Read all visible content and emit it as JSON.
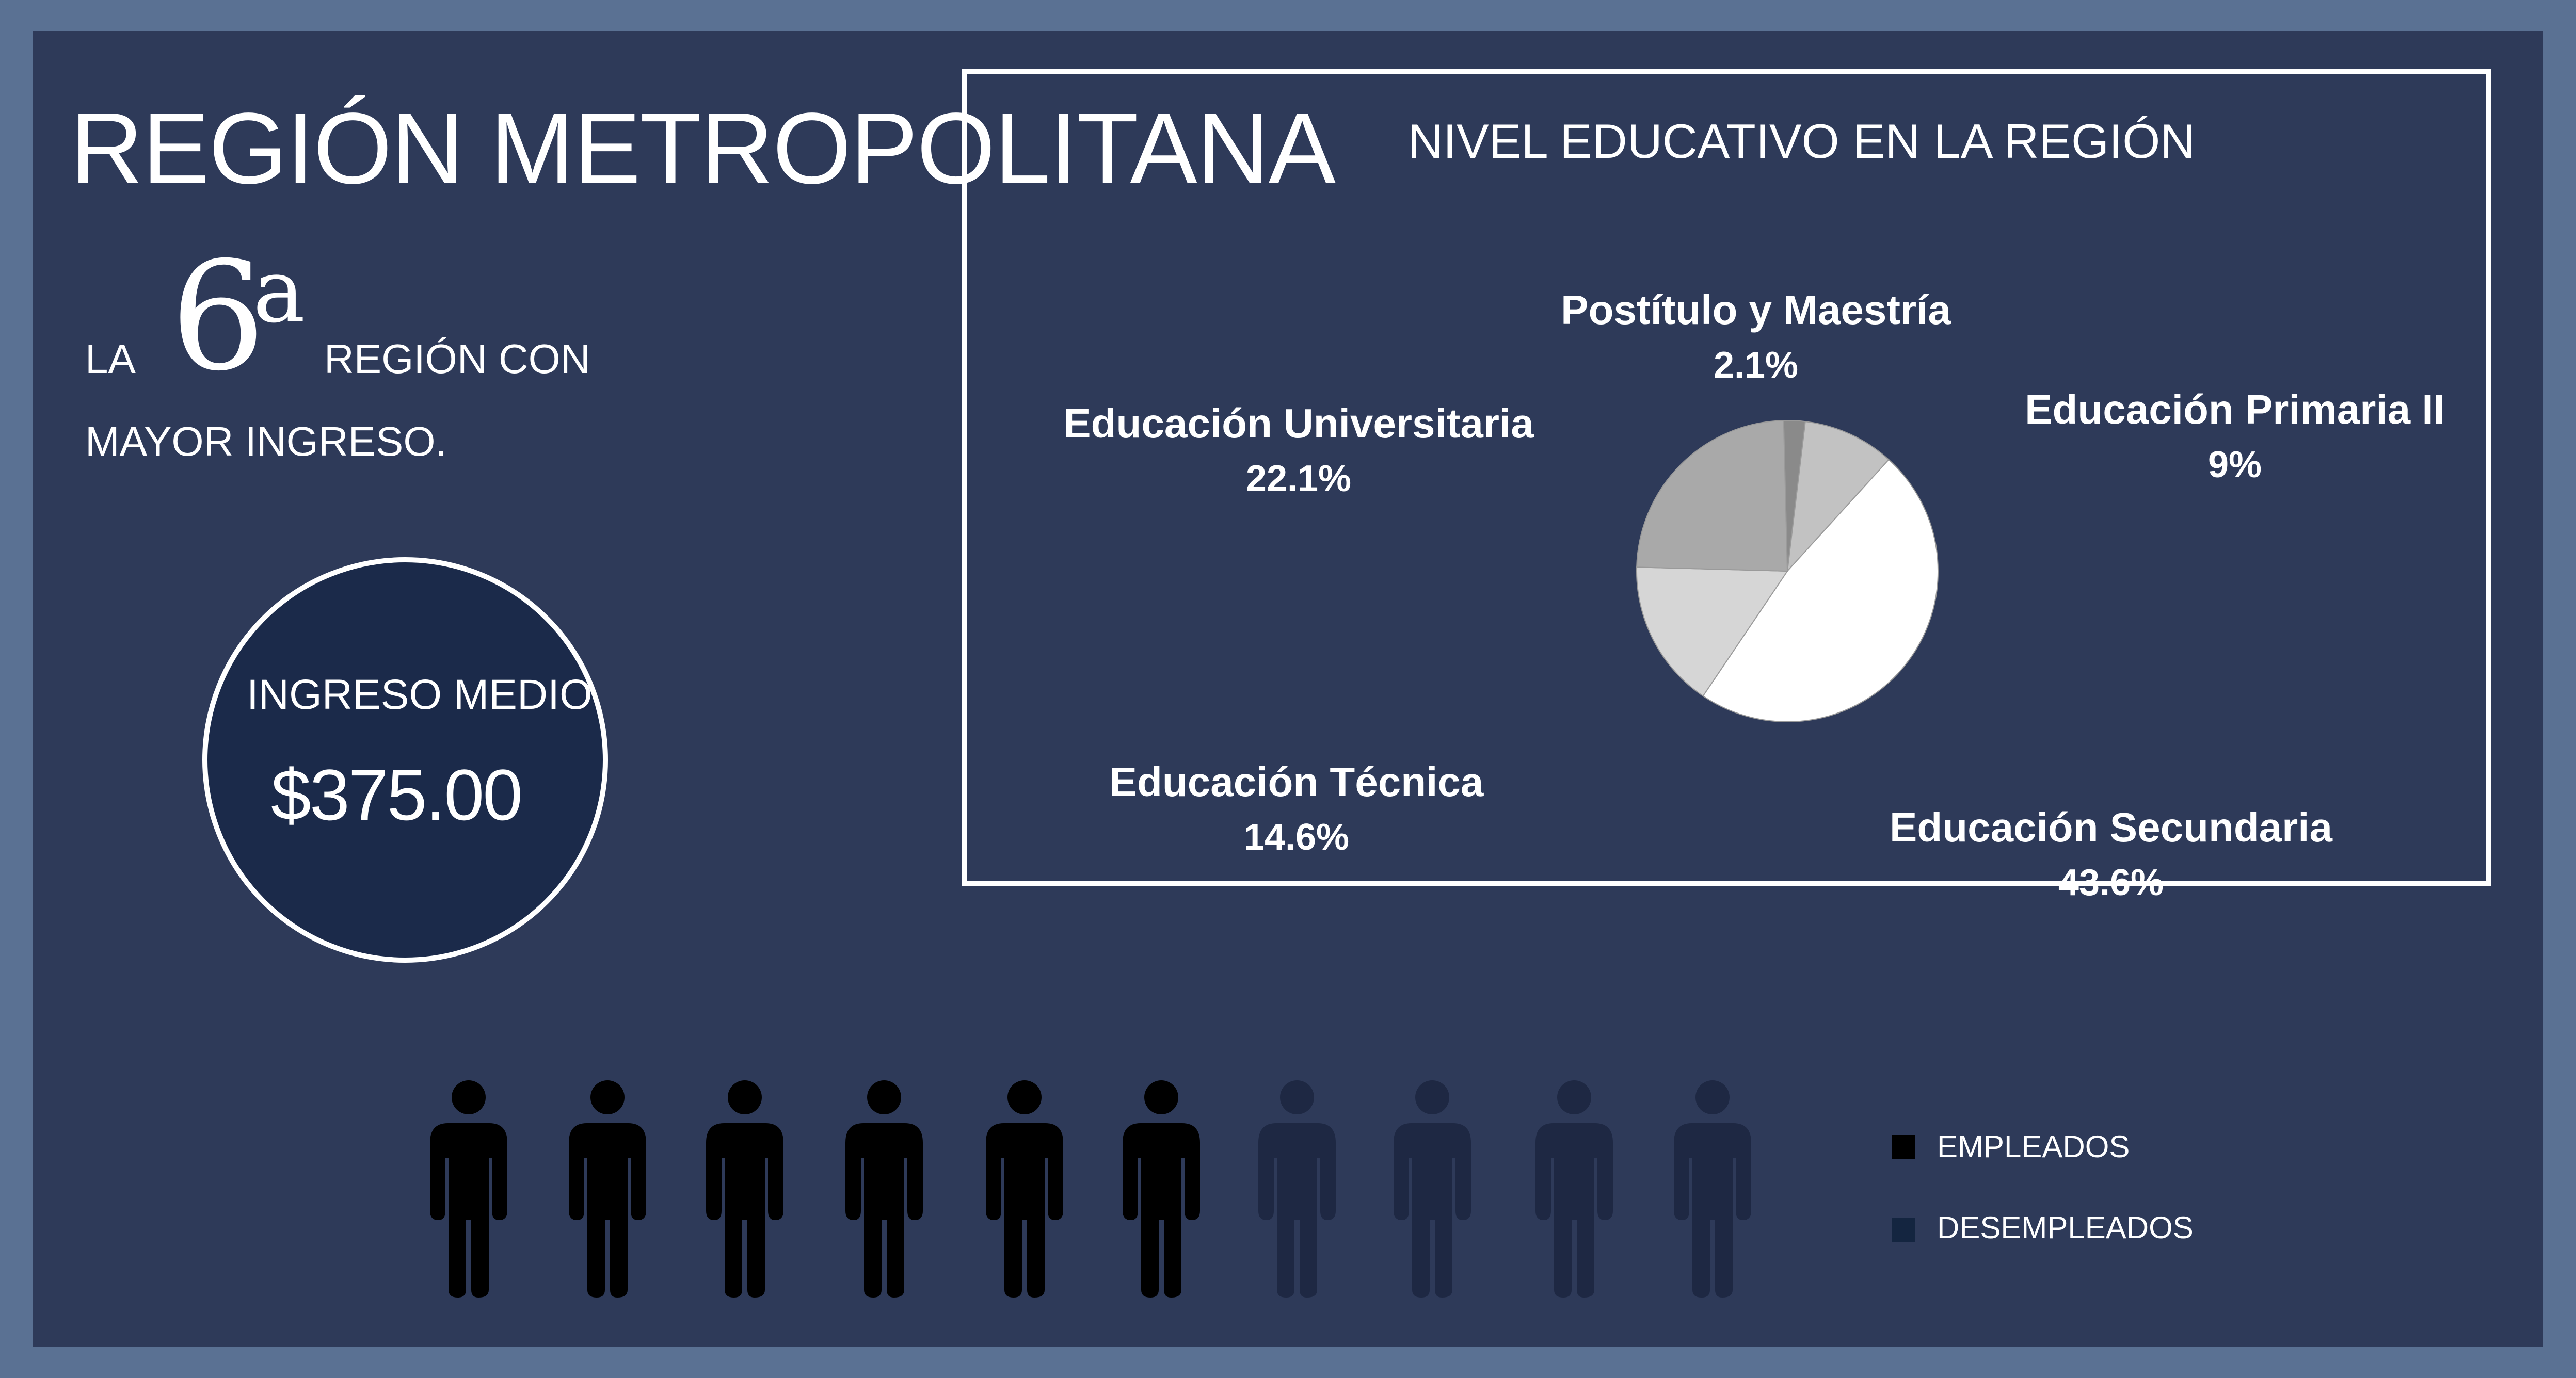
{
  "header": {
    "title": "REGIÓN METROPOLITANA"
  },
  "rank": {
    "prefix": "LA",
    "number": "6",
    "superscript": "a",
    "line1_suffix": "REGIÓN CON",
    "line2": "MAYOR INGRESO."
  },
  "income": {
    "label": "INGRESO MEDIO",
    "value": "$375.00"
  },
  "chart_data": {
    "type": "pie",
    "title": "NIVEL EDUCATIVO EN LA REGIÓN",
    "slices": [
      {
        "label": "Postítulo y Maestría",
        "value": 2.1,
        "value_label": "2.1%",
        "color": "#8a8a8a"
      },
      {
        "label": "Educación Primaria II",
        "value": 9,
        "value_label": "9%",
        "color": "#c2c2c2"
      },
      {
        "label": "Educación Secundaria",
        "value": 43.6,
        "value_label": "43.6%",
        "color": "#ffffff"
      },
      {
        "label": "Educación Técnica",
        "value": 14.6,
        "value_label": "14.6%",
        "color": "#d6d6d6"
      },
      {
        "label": "Educación Universitaria",
        "value": 22.1,
        "value_label": "22.1%",
        "color": "#a9a9a9"
      }
    ],
    "legend": "none"
  },
  "employment": {
    "employed_count": 6,
    "unemployed_count": 4,
    "employed_color": "#000000",
    "unemployed_color": "#1e2843",
    "legend": [
      {
        "label": "EMPLEADOS",
        "color": "#000000"
      },
      {
        "label": "DESEMPLEADOS",
        "color": "#142540"
      }
    ]
  }
}
